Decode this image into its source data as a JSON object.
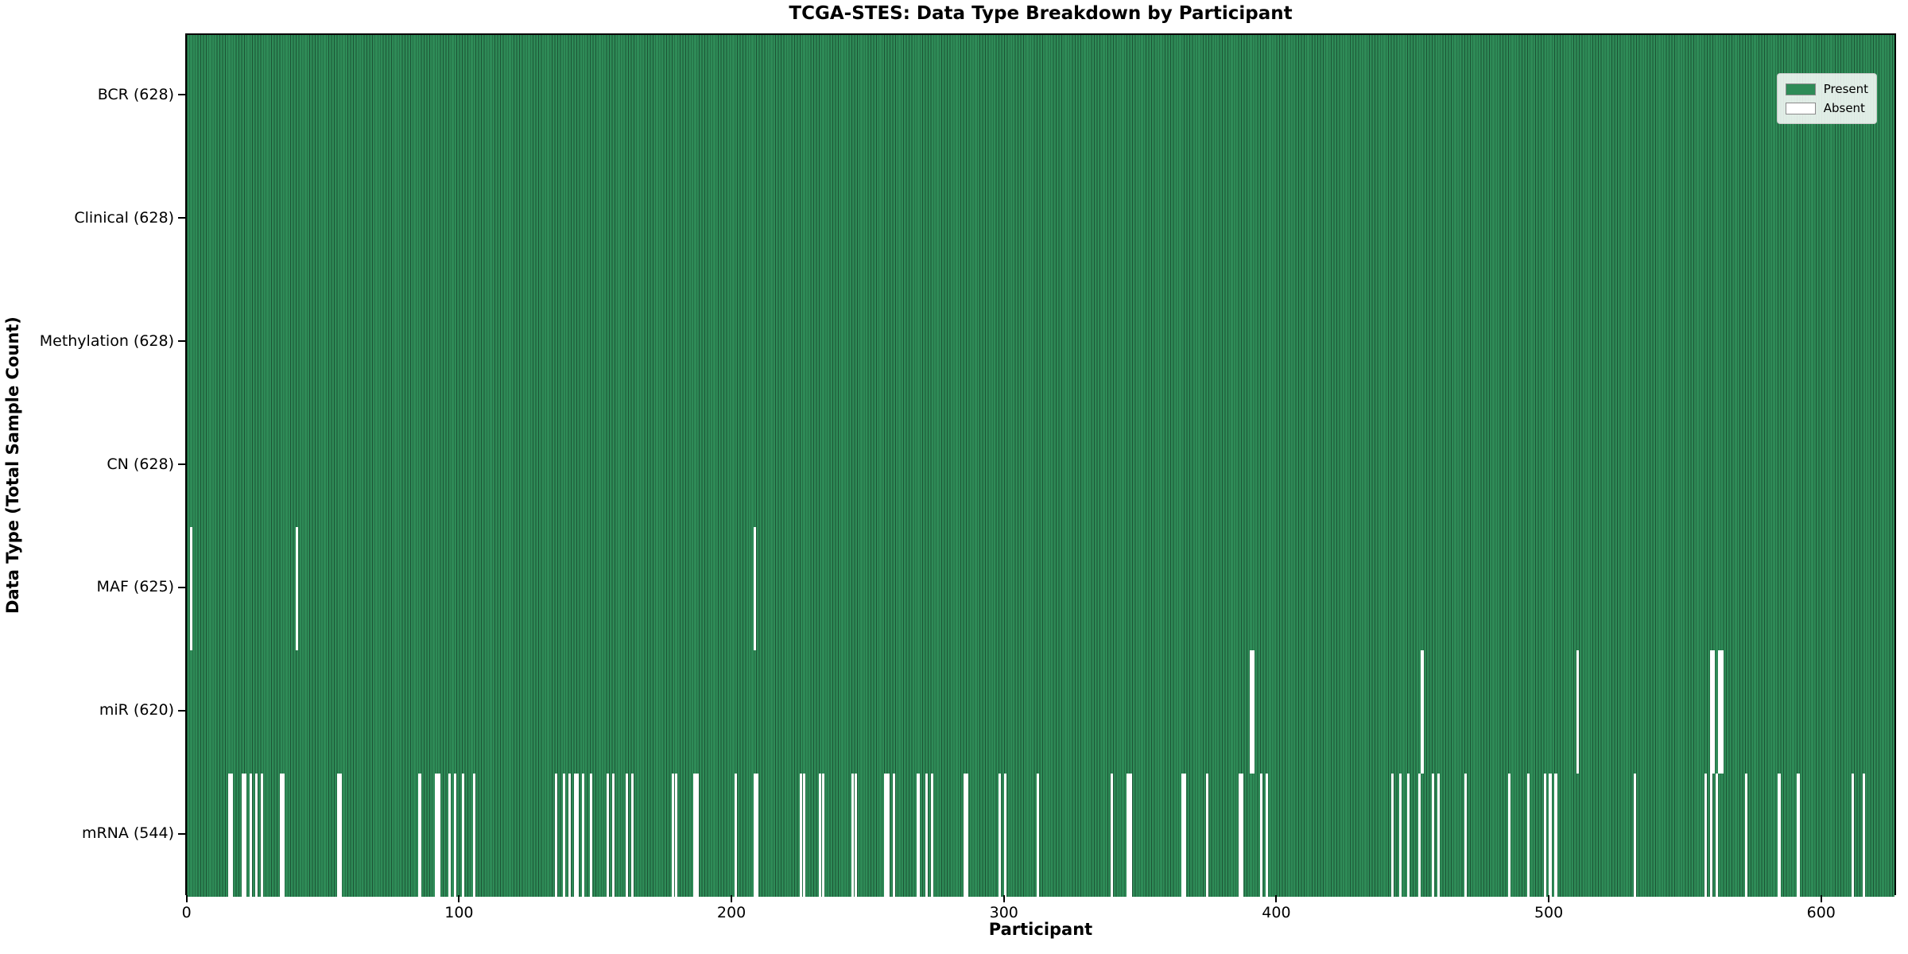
{
  "chart_data": {
    "type": "heatmap",
    "variant": "presence-absence-matrix",
    "title": "TCGA-STES: Data Type Breakdown by Participant",
    "xlabel": "Participant",
    "ylabel": "Data Type (Total Sample Count)",
    "n_participants": 628,
    "x_range": [
      0,
      627
    ],
    "x_ticks": [
      0,
      100,
      200,
      300,
      400,
      500,
      600
    ],
    "grid": false,
    "legend": {
      "position": "upper right",
      "entries": [
        {
          "label": "Present",
          "color": "#2e8b57"
        },
        {
          "label": "Absent",
          "color": "#ffffff"
        }
      ]
    },
    "colors": {
      "present": "#2e8b57",
      "absent": "#ffffff",
      "bar_edge": "#1c5435",
      "row_separator": "#111111",
      "plot_border": "#000000"
    },
    "rows": [
      {
        "name": "BCR",
        "total": 628,
        "label": "BCR (628)",
        "absent": []
      },
      {
        "name": "Clinical",
        "total": 628,
        "label": "Clinical (628)",
        "absent": []
      },
      {
        "name": "Methylation",
        "total": 628,
        "label": "Methylation (628)",
        "absent": []
      },
      {
        "name": "CN",
        "total": 628,
        "label": "CN (628)",
        "absent": []
      },
      {
        "name": "MAF",
        "total": 625,
        "label": "MAF (625)",
        "absent": [
          1,
          40,
          208
        ]
      },
      {
        "name": "miR",
        "total": 620,
        "label": "miR (620)",
        "absent": [
          390,
          391,
          453,
          510,
          559,
          560,
          562,
          563
        ]
      },
      {
        "name": "mRNA",
        "total": 544,
        "label": "mRNA (544)",
        "absent": [
          15,
          16,
          20,
          21,
          23,
          25,
          27,
          34,
          35,
          55,
          56,
          85,
          91,
          92,
          96,
          98,
          101,
          105,
          135,
          138,
          140,
          142,
          143,
          145,
          148,
          154,
          156,
          161,
          163,
          178,
          179,
          186,
          187,
          201,
          208,
          209,
          225,
          226,
          232,
          233,
          244,
          245,
          256,
          257,
          259,
          268,
          271,
          273,
          285,
          286,
          298,
          300,
          312,
          339,
          345,
          346,
          365,
          366,
          374,
          386,
          387,
          394,
          396,
          442,
          445,
          448,
          452,
          457,
          459,
          469,
          485,
          492,
          498,
          500,
          502,
          531,
          557,
          559,
          561,
          572,
          584,
          591,
          611,
          615
        ]
      }
    ]
  }
}
